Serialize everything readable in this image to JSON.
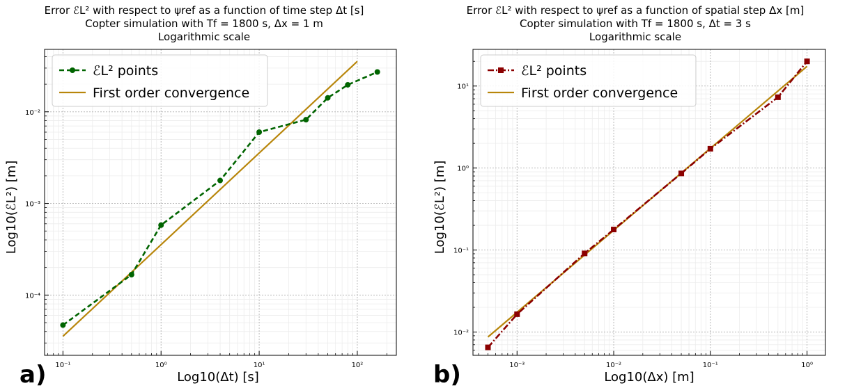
{
  "figure": {
    "panels": [
      {
        "letter": "a)",
        "title": [
          "Error ℰL² with respect to ψref as a function of time step Δt [s]",
          "Copter simulation with Tf = 1800 s, Δx = 1 m",
          "Logarithmic scale"
        ]
      },
      {
        "letter": "b)",
        "title": [
          "Error ℰL² with respect to ψref as a function of spatial step Δx [m]",
          "Copter simulation with Tf = 1800 s, Δt = 3 s",
          "Logarithmic scale"
        ]
      }
    ]
  },
  "chart_data": [
    {
      "type": "line",
      "xlabel": "Log10(Δt) [s]",
      "ylabel": "Log10(ℰL²) [m]",
      "xscale": "log",
      "yscale": "log",
      "xlim": [
        0.065,
        250
      ],
      "ylim": [
        2.2e-05,
        0.048
      ],
      "xticks": [
        0.1,
        1,
        10,
        100
      ],
      "xtick_labels": [
        "10⁻¹",
        "10⁰",
        "10¹",
        "10²"
      ],
      "yticks": [
        0.0001,
        0.001,
        0.01
      ],
      "ytick_labels": [
        "10⁻⁴",
        "10⁻³",
        "10⁻²"
      ],
      "grid": true,
      "legend": "top-left",
      "series": [
        {
          "name": "ℰL² points",
          "color": "#006400",
          "style": "dashed",
          "marker": "circle",
          "x": [
            0.1,
            0.5,
            1,
            4,
            10,
            30,
            50,
            80,
            160
          ],
          "y": [
            4.7e-05,
            0.000167,
            0.00058,
            0.00178,
            0.006,
            0.0082,
            0.0142,
            0.0197,
            0.0272
          ]
        },
        {
          "name": "First order convergence",
          "color": "#b8860b",
          "style": "solid",
          "marker": "none",
          "x": [
            0.1,
            100
          ],
          "y": [
            3.55e-05,
            0.0355
          ]
        }
      ]
    },
    {
      "type": "line",
      "xlabel": "Log10(Δx) [m]",
      "ylabel": "Log10(ℰL²) [m]",
      "xscale": "log",
      "yscale": "log",
      "xlim": [
        0.00035,
        1.55
      ],
      "ylim": [
        0.0052,
        28
      ],
      "xticks": [
        0.001,
        0.01,
        0.1,
        1
      ],
      "xtick_labels": [
        "10⁻³",
        "10⁻²",
        "10⁻¹",
        "10⁰"
      ],
      "yticks": [
        0.01,
        0.1,
        1,
        10
      ],
      "ytick_labels": [
        "10⁻²",
        "10⁻¹",
        "10⁰",
        "10¹"
      ],
      "grid": true,
      "legend": "top-left",
      "series": [
        {
          "name": "ℰL² points",
          "color": "#8b0000",
          "style": "dashdot",
          "marker": "square",
          "x": [
            0.0005,
            0.001,
            0.005,
            0.01,
            0.05,
            0.1,
            0.5,
            1
          ],
          "y": [
            0.0065,
            0.0165,
            0.091,
            0.178,
            0.86,
            1.72,
            7.3,
            20
          ]
        },
        {
          "name": "First order convergence",
          "color": "#b8860b",
          "style": "solid",
          "marker": "none",
          "x": [
            0.0005,
            1
          ],
          "y": [
            0.0087,
            17.4
          ]
        }
      ]
    }
  ]
}
